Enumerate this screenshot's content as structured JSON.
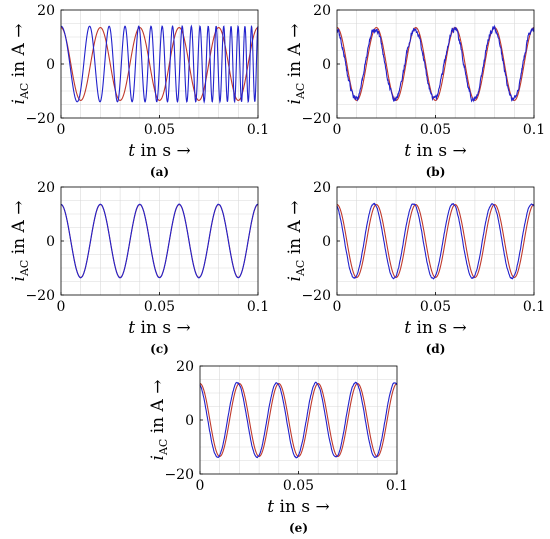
{
  "figure": {
    "xlabel": "t in s →",
    "ylabel_main": "i",
    "ylabel_sub": "AC",
    "ylabel_rest": " in A →",
    "colors": {
      "reference": "#c0392b",
      "measured": "#2222cc"
    }
  },
  "chart_data": [
    {
      "type": "line",
      "caption": "(a)",
      "xlim": [
        0,
        0.1
      ],
      "ylim": [
        -20,
        20
      ],
      "xticks": [
        "0",
        "0.05",
        "0.1"
      ],
      "yticks": [
        "20",
        "0",
        "−20"
      ],
      "grid": true,
      "series": [
        {
          "role": "reference",
          "model": {
            "amplitude": 13.5,
            "frequency": 50,
            "phase": 1.5708,
            "noise": 0,
            "freq_drift": 0
          }
        },
        {
          "role": "measured",
          "model": {
            "amplitude": 14,
            "frequency": 50,
            "phase": 1.5708,
            "noise": 0,
            "freq_drift": 1300
          }
        }
      ]
    },
    {
      "type": "line",
      "caption": "(b)",
      "xlim": [
        0,
        0.1
      ],
      "ylim": [
        -20,
        20
      ],
      "xticks": [
        "0",
        "0.05",
        "0.1"
      ],
      "yticks": [
        "20",
        "0",
        "−20"
      ],
      "grid": true,
      "series": [
        {
          "role": "reference",
          "model": {
            "amplitude": 13.5,
            "frequency": 50,
            "phase": 1.5708,
            "noise": 0,
            "freq_drift": 0
          }
        },
        {
          "role": "measured",
          "model": {
            "amplitude": 13,
            "frequency": 50,
            "phase": 1.75,
            "noise": 1.6,
            "freq_drift": 0
          }
        }
      ]
    },
    {
      "type": "line",
      "caption": "(c)",
      "xlim": [
        0,
        0.1
      ],
      "ylim": [
        -20,
        20
      ],
      "xticks": [
        "0",
        "0.05",
        "0.1"
      ],
      "yticks": [
        "20",
        "0",
        "−20"
      ],
      "grid": true,
      "series": [
        {
          "role": "reference",
          "model": {
            "amplitude": 13.5,
            "frequency": 50,
            "phase": 1.5708,
            "noise": 0,
            "freq_drift": 0
          }
        },
        {
          "role": "measured",
          "model": {
            "amplitude": 13.6,
            "frequency": 50,
            "phase": 1.58,
            "noise": 0.1,
            "freq_drift": 0
          }
        }
      ]
    },
    {
      "type": "line",
      "caption": "(d)",
      "xlim": [
        0,
        0.1
      ],
      "ylim": [
        -20,
        20
      ],
      "xticks": [
        "0",
        "0.05",
        "0.1"
      ],
      "yticks": [
        "20",
        "0",
        "−20"
      ],
      "grid": true,
      "series": [
        {
          "role": "reference",
          "model": {
            "amplitude": 13.5,
            "frequency": 50,
            "phase": 1.5708,
            "noise": 0,
            "freq_drift": 0
          }
        },
        {
          "role": "measured",
          "model": {
            "amplitude": 13.8,
            "frequency": 50,
            "phase": 1.95,
            "noise": 0.35,
            "freq_drift": 0
          }
        }
      ]
    },
    {
      "type": "line",
      "caption": "(e)",
      "xlim": [
        0,
        0.1
      ],
      "ylim": [
        -20,
        20
      ],
      "xticks": [
        "0",
        "0.05",
        "0.1"
      ],
      "yticks": [
        "20",
        "0",
        "−20"
      ],
      "grid": true,
      "series": [
        {
          "role": "reference",
          "model": {
            "amplitude": 13.5,
            "frequency": 50,
            "phase": 1.5708,
            "noise": 0,
            "freq_drift": 0
          }
        },
        {
          "role": "measured",
          "model": {
            "amplitude": 13.8,
            "frequency": 50,
            "phase": 1.9,
            "noise": 0.3,
            "freq_drift": 0
          }
        }
      ]
    }
  ]
}
